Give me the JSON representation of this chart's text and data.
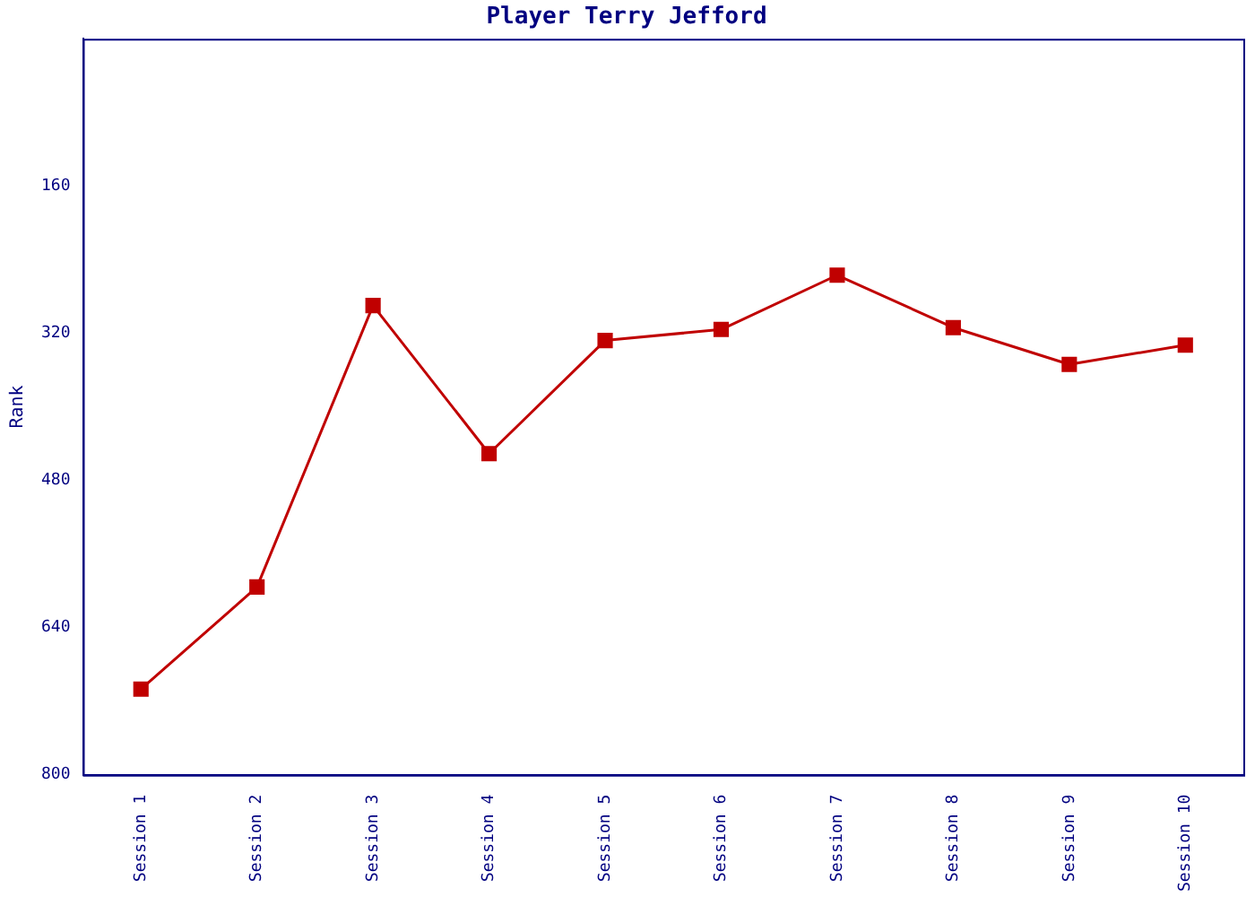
{
  "chart_data": {
    "type": "line",
    "title": "Player Terry Jefford",
    "ylabel": "Rank",
    "categories": [
      "Session 1",
      "Session 2",
      "Session 3",
      "Session 4",
      "Session 5",
      "Session 6",
      "Session 7",
      "Session 8",
      "Session 9",
      "Session 10"
    ],
    "series": [
      {
        "color": "#c00000",
        "values": [
          707,
          596,
          290,
          451,
          328,
          316,
          257,
          314,
          354,
          333
        ]
      }
    ],
    "ylim": [
      800,
      0
    ],
    "yticks": [
      160,
      320,
      480,
      640,
      800
    ],
    "grid": false,
    "legend": false,
    "marker": "square",
    "line_style": "solid"
  }
}
